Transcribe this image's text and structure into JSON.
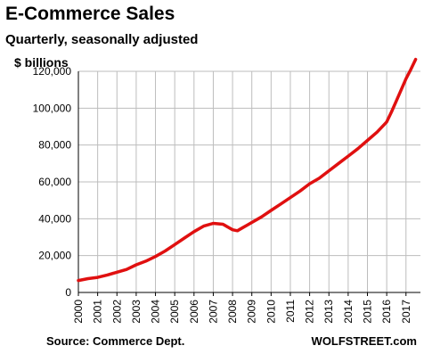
{
  "chart_data": {
    "type": "line",
    "title": "E-Commerce Sales",
    "subtitle": "Quarterly, seasonally adjusted",
    "ylabel": "$ billions",
    "source": "Source: Commerce Dept.",
    "credit": "WOLFSTREET.com",
    "ylim": [
      0,
      120000
    ],
    "yticks": [
      0,
      20000,
      40000,
      60000,
      80000,
      100000,
      120000
    ],
    "ytick_labels": [
      "0",
      "20,000",
      "40,000",
      "60,000",
      "80,000",
      "100,000",
      "120,000"
    ],
    "xlim": [
      2000,
      2017.75
    ],
    "xtick_labels": [
      "2000",
      "2001",
      "2002",
      "2003",
      "2004",
      "2005",
      "2006",
      "2007",
      "2008",
      "2009",
      "2010",
      "2011",
      "2012",
      "2013",
      "2014",
      "2015",
      "2016",
      "2017"
    ],
    "grid": true,
    "line_color": "#e01010",
    "series": [
      {
        "x": [
          2000.0,
          2000.5,
          2001.0,
          2001.5,
          2002.0,
          2002.5,
          2003.0,
          2003.5,
          2004.0,
          2004.5,
          2005.0,
          2005.5,
          2006.0,
          2006.5,
          2007.0,
          2007.5,
          2008.0,
          2008.25,
          2008.5,
          2008.75,
          2009.0,
          2009.5,
          2010.0,
          2010.5,
          2011.0,
          2011.5,
          2012.0,
          2012.5,
          2013.0,
          2013.5,
          2014.0,
          2014.5,
          2015.0,
          2015.5,
          2016.0,
          2016.25,
          2016.5,
          2016.75,
          2017.0,
          2017.25,
          2017.5
        ],
        "values": [
          6500,
          7500,
          8200,
          9500,
          11000,
          12500,
          15000,
          17000,
          19500,
          22500,
          26000,
          29500,
          33000,
          36000,
          37500,
          37000,
          34000,
          33500,
          35000,
          36500,
          38000,
          41000,
          44500,
          48000,
          51500,
          55000,
          59000,
          62000,
          66000,
          70000,
          74000,
          78000,
          82500,
          87000,
          92500,
          98000,
          104000,
          110000,
          116000,
          121000,
          126500
        ]
      }
    ]
  }
}
